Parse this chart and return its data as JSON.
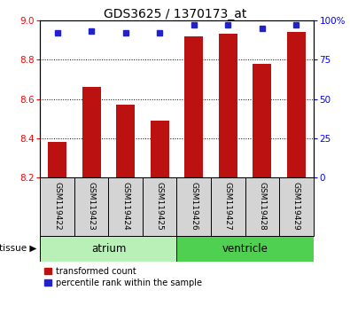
{
  "title": "GDS3625 / 1370173_at",
  "samples": [
    "GSM119422",
    "GSM119423",
    "GSM119424",
    "GSM119425",
    "GSM119426",
    "GSM119427",
    "GSM119428",
    "GSM119429"
  ],
  "red_values": [
    8.38,
    8.66,
    8.57,
    8.49,
    8.92,
    8.93,
    8.78,
    8.94
  ],
  "blue_values": [
    92,
    93,
    92,
    92,
    97,
    97,
    95,
    97
  ],
  "ymin": 8.2,
  "ymax": 9.0,
  "y2min": 0,
  "y2max": 100,
  "yticks": [
    8.2,
    8.4,
    8.6,
    8.8,
    9.0
  ],
  "y2ticks": [
    0,
    25,
    50,
    75,
    100
  ],
  "groups": [
    {
      "label": "atrium",
      "start": 0,
      "end": 4,
      "color": "#b8f0b8"
    },
    {
      "label": "ventricle",
      "start": 4,
      "end": 8,
      "color": "#50d050"
    }
  ],
  "tissue_label": "tissue",
  "bar_color": "#bb1111",
  "dot_color": "#2222cc",
  "bar_bottom": 8.2,
  "legend_red": "transformed count",
  "legend_blue": "percentile rank within the sample",
  "sample_bg_color": "#d4d4d4"
}
